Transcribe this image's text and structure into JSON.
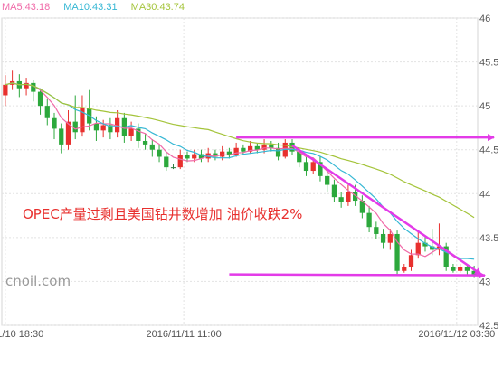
{
  "legend": [
    {
      "label": "MA5:43.18",
      "color": "#f06aa8"
    },
    {
      "label": "MA10:43.31",
      "color": "#35b7d4"
    },
    {
      "label": "MA30:43.74",
      "color": "#a4c43a"
    }
  ],
  "annotation": "OPEC产量过剩且美国钻井数增加 油价收跌2%",
  "watermark": "cnoil.com",
  "chart_data": {
    "type": "candlestick",
    "ylim": [
      42.5,
      46
    ],
    "yticks": [
      "46",
      "45.5",
      "45",
      "44.5",
      "44",
      "43.5",
      "43",
      "42.5"
    ],
    "xtick_labels": [
      "2016/11/10 18:30",
      "2016/11/11 11:00",
      "2016/11/12 03:30"
    ],
    "xtick_positions": [
      0,
      25.5,
      64.5
    ],
    "colors": {
      "up": "#e8302e",
      "down": "#2ca83c",
      "annotation_lines": "#e33be8"
    },
    "candles": [
      [
        45.12,
        45.24,
        45.35,
        45.0
      ],
      [
        45.24,
        45.28,
        45.4,
        45.18
      ],
      [
        45.28,
        45.2,
        45.36,
        45.1
      ],
      [
        45.2,
        45.26,
        45.32,
        45.12
      ],
      [
        45.26,
        45.16,
        45.3,
        45.05
      ],
      [
        45.16,
        45.0,
        45.2,
        44.9
      ],
      [
        45.0,
        44.86,
        45.08,
        44.78
      ],
      [
        44.86,
        44.74,
        44.92,
        44.62
      ],
      [
        44.74,
        44.56,
        44.8,
        44.46
      ],
      [
        44.56,
        44.82,
        44.95,
        44.5
      ],
      [
        44.82,
        44.7,
        45.12,
        44.62
      ],
      [
        44.7,
        44.98,
        45.12,
        44.65
      ],
      [
        44.98,
        44.8,
        45.18,
        44.72
      ],
      [
        44.8,
        44.72,
        44.88,
        44.6
      ],
      [
        44.72,
        44.78,
        44.84,
        44.64
      ],
      [
        44.78,
        44.7,
        44.86,
        44.62
      ],
      [
        44.7,
        44.86,
        44.95,
        44.64
      ],
      [
        44.86,
        44.66,
        44.92,
        44.58
      ],
      [
        44.66,
        44.74,
        44.82,
        44.6
      ],
      [
        44.74,
        44.6,
        44.8,
        44.52
      ],
      [
        44.6,
        44.56,
        44.68,
        44.5
      ],
      [
        44.56,
        44.5,
        44.62,
        44.42
      ],
      [
        44.5,
        44.42,
        44.56,
        44.36
      ],
      [
        44.42,
        44.3,
        44.48,
        44.26
      ],
      [
        44.3,
        44.3,
        44.34,
        44.28
      ],
      [
        44.3,
        44.44,
        44.5,
        44.28
      ],
      [
        44.44,
        44.4,
        44.48,
        44.36
      ],
      [
        44.4,
        44.45,
        44.5,
        44.36
      ],
      [
        44.45,
        44.4,
        44.5,
        44.36
      ],
      [
        44.4,
        44.46,
        44.52,
        44.36
      ],
      [
        44.46,
        44.42,
        44.5,
        44.38
      ],
      [
        44.42,
        44.48,
        44.54,
        44.38
      ],
      [
        44.48,
        44.44,
        44.52,
        44.4
      ],
      [
        44.44,
        44.52,
        44.58,
        44.42
      ],
      [
        44.52,
        44.48,
        44.56,
        44.44
      ],
      [
        44.48,
        44.54,
        44.6,
        44.46
      ],
      [
        44.54,
        44.5,
        44.58,
        44.46
      ],
      [
        44.5,
        44.56,
        44.62,
        44.46
      ],
      [
        44.56,
        44.52,
        44.6,
        44.48
      ],
      [
        44.52,
        44.42,
        44.58,
        44.38
      ],
      [
        44.42,
        44.58,
        44.62,
        44.4
      ],
      [
        44.58,
        44.48,
        44.62,
        44.44
      ],
      [
        44.48,
        44.36,
        44.52,
        44.3
      ],
      [
        44.36,
        44.26,
        44.44,
        44.2
      ],
      [
        44.26,
        44.36,
        44.4,
        44.22
      ],
      [
        44.36,
        44.2,
        44.42,
        44.14
      ],
      [
        44.2,
        44.1,
        44.26,
        44.02
      ],
      [
        44.1,
        43.96,
        44.16,
        43.9
      ],
      [
        43.96,
        43.9,
        44.02,
        43.84
      ],
      [
        43.9,
        44.02,
        44.1,
        43.86
      ],
      [
        44.02,
        43.92,
        44.1,
        43.86
      ],
      [
        43.92,
        43.78,
        43.98,
        43.72
      ],
      [
        43.78,
        43.62,
        43.86,
        43.56
      ],
      [
        43.62,
        43.54,
        43.68,
        43.48
      ],
      [
        43.54,
        43.44,
        43.6,
        43.38
      ],
      [
        43.44,
        43.54,
        43.6,
        43.36
      ],
      [
        43.54,
        43.12,
        43.58,
        43.08
      ],
      [
        43.12,
        43.16,
        43.2,
        43.1
      ],
      [
        43.16,
        43.3,
        43.36,
        43.12
      ],
      [
        43.3,
        43.44,
        43.56,
        43.26
      ],
      [
        43.44,
        43.4,
        43.52,
        43.34
      ],
      [
        43.4,
        43.36,
        43.6,
        43.3
      ],
      [
        43.36,
        43.4,
        43.66,
        43.3
      ],
      [
        43.4,
        43.16,
        43.44,
        43.12
      ],
      [
        43.16,
        43.12,
        43.2,
        43.1
      ],
      [
        43.12,
        43.16,
        43.2,
        43.1
      ],
      [
        43.16,
        43.12,
        43.2,
        43.08
      ],
      [
        43.12,
        43.08,
        43.18,
        43.04
      ]
    ]
  }
}
